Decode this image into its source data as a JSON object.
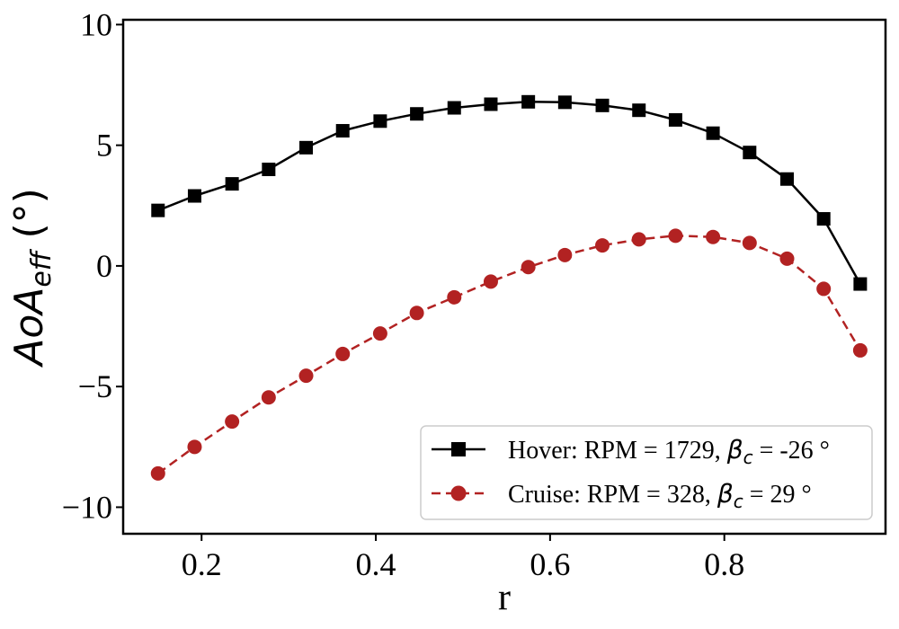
{
  "chart_data": {
    "type": "line",
    "title": "",
    "xlabel": "r",
    "ylabel": {
      "main": "AoA",
      "sub": "eff",
      "unit": " (°)"
    },
    "xlim": [
      0.11,
      0.985
    ],
    "ylim": [
      -11.1,
      10.2
    ],
    "x_ticks": [
      0.2,
      0.4,
      0.6,
      0.8
    ],
    "x_tick_labels": [
      "0.2",
      "0.4",
      "0.6",
      "0.8"
    ],
    "y_ticks": [
      -10,
      -5,
      0,
      5,
      10
    ],
    "y_tick_labels": [
      "−10",
      "−5",
      "0",
      "5",
      "10"
    ],
    "grid": false,
    "legend_position": "lower-right",
    "series": [
      {
        "name": "Hover",
        "legend": {
          "prefix": "Hover: RPM = 1729, ",
          "symbol": "β",
          "sub": "c",
          "suffix": " = -26 °"
        },
        "color": "#000000",
        "line_style": "solid",
        "marker": "square",
        "x": [
          0.15,
          0.192,
          0.235,
          0.277,
          0.32,
          0.362,
          0.405,
          0.447,
          0.49,
          0.532,
          0.575,
          0.617,
          0.66,
          0.702,
          0.744,
          0.787,
          0.829,
          0.872,
          0.914,
          0.956
        ],
        "y": [
          2.3,
          2.9,
          3.4,
          4.0,
          4.9,
          5.6,
          6.0,
          6.3,
          6.55,
          6.7,
          6.8,
          6.78,
          6.65,
          6.45,
          6.05,
          5.5,
          4.7,
          3.6,
          1.95,
          -0.75
        ]
      },
      {
        "name": "Cruise",
        "legend": {
          "prefix": "Cruise: RPM = 328, ",
          "symbol": "β",
          "sub": "c",
          "suffix": " = 29 °"
        },
        "color": "#b22222",
        "line_style": "dashed",
        "marker": "circle",
        "x": [
          0.15,
          0.192,
          0.235,
          0.277,
          0.32,
          0.362,
          0.405,
          0.447,
          0.49,
          0.532,
          0.575,
          0.617,
          0.66,
          0.702,
          0.744,
          0.787,
          0.829,
          0.872,
          0.914,
          0.956
        ],
        "y": [
          -8.6,
          -7.5,
          -6.45,
          -5.45,
          -4.55,
          -3.65,
          -2.8,
          -1.95,
          -1.3,
          -0.65,
          -0.05,
          0.45,
          0.85,
          1.1,
          1.25,
          1.2,
          0.95,
          0.3,
          -0.95,
          -3.5
        ]
      }
    ]
  }
}
